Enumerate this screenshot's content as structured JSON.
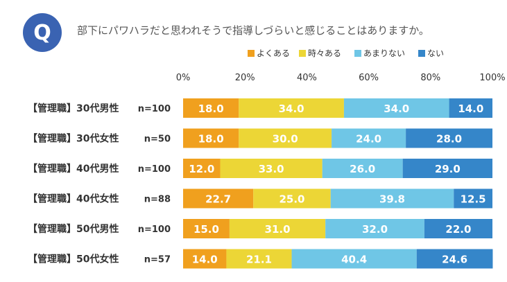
{
  "question": {
    "badge": "Q",
    "text": "部下にパワハラだと思われそうで指導しづらいと感じることはありますか。"
  },
  "colors": {
    "badge": "#3a63b2",
    "series": [
      "#f0a01e",
      "#ecd636",
      "#6fc6e6",
      "#3586c9"
    ]
  },
  "chart_data": {
    "type": "bar",
    "orientation": "horizontal",
    "stacked": true,
    "percent_scale": true,
    "title": "部下にパワハラだと思われそうで指導しづらいと感じることはありますか。",
    "categories": [
      "【管理職】30代男性",
      "【管理職】30代女性",
      "【管理職】40代男性",
      "【管理職】40代女性",
      "【管理職】50代男性",
      "【管理職】50代女性"
    ],
    "sample_sizes": [
      "n=100",
      "n=50",
      "n=100",
      "n=88",
      "n=100",
      "n=57"
    ],
    "series": [
      {
        "name": "よくある",
        "values": [
          18.0,
          18.0,
          12.0,
          22.7,
          15.0,
          14.0
        ]
      },
      {
        "name": "時々ある",
        "values": [
          34.0,
          30.0,
          33.0,
          25.0,
          31.0,
          21.1
        ]
      },
      {
        "name": "あまりない",
        "values": [
          34.0,
          24.0,
          26.0,
          39.8,
          32.0,
          40.4
        ]
      },
      {
        "name": "ない",
        "values": [
          14.0,
          28.0,
          29.0,
          12.5,
          22.0,
          24.6
        ]
      }
    ],
    "data_labels": [
      [
        "18.0",
        "34.0",
        "34.0",
        "14.0"
      ],
      [
        "18.0",
        "30.0",
        "24.0",
        "28.0"
      ],
      [
        "12.0",
        "33.0",
        "26.0",
        "29.0"
      ],
      [
        "22.7",
        "25.0",
        "39.8",
        "12.5"
      ],
      [
        "15.0",
        "31.0",
        "32.0",
        "22.0"
      ],
      [
        "14.0",
        "21.1",
        "40.4",
        "24.6"
      ]
    ],
    "xlim": [
      0,
      100
    ],
    "xticks": [
      "0%",
      "20%",
      "40%",
      "60%",
      "80%",
      "100%"
    ],
    "xlabel": "",
    "ylabel": "",
    "legend_position": "top-right"
  }
}
